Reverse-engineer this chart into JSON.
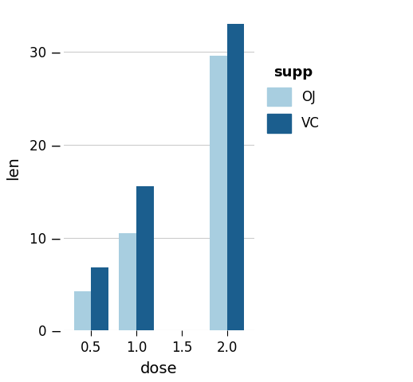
{
  "categories": [
    "0.5",
    "1.0",
    "1.5",
    "2.0"
  ],
  "OJ_values": [
    4.2,
    10.5,
    0,
    29.6
  ],
  "VC_values": [
    6.8,
    15.5,
    0,
    33.0
  ],
  "OJ_color": "#A8CEE0",
  "VC_color": "#1B5E8E",
  "xlabel": "dose",
  "ylabel": "len",
  "legend_title": "supp",
  "legend_labels": [
    "OJ",
    "VC"
  ],
  "ylim": [
    0,
    35
  ],
  "yticks": [
    0,
    10,
    20,
    30
  ],
  "background_color": "#FFFFFF",
  "panel_bg": "#FFFFFF",
  "grid_color": "#CCCCCC",
  "bar_width": 0.38
}
